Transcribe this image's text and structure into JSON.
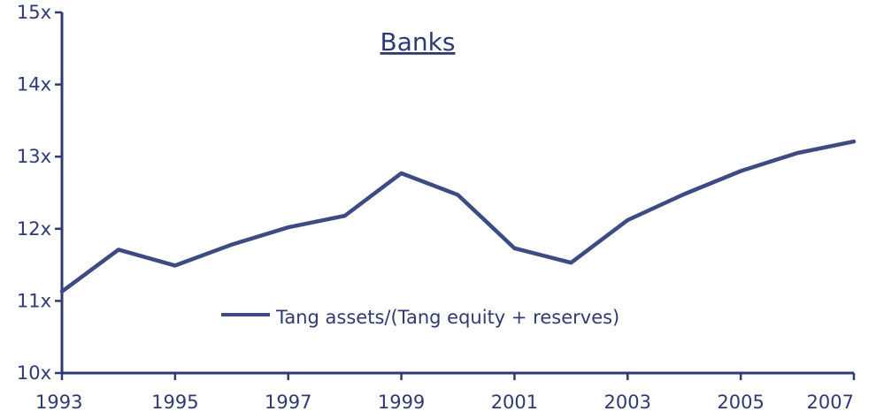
{
  "chart_data": {
    "type": "line",
    "title": "Banks",
    "xlabel": "",
    "ylabel": "",
    "x": [
      1993,
      1994,
      1995,
      1996,
      1997,
      1998,
      1999,
      2000,
      2001,
      2002,
      2003,
      2004,
      2005,
      2006,
      2007
    ],
    "x_tick_labels": [
      "1993",
      "1995",
      "1997",
      "1999",
      "2001",
      "2003",
      "2005",
      "2007"
    ],
    "x_ticks": [
      1993,
      1995,
      1997,
      1999,
      2001,
      2003,
      2005,
      2007
    ],
    "y_ticks": [
      10,
      11,
      12,
      13,
      14,
      15
    ],
    "y_tick_labels": [
      "10x",
      "11x",
      "12x",
      "13x",
      "14x",
      "15x"
    ],
    "xlim": [
      1993,
      2007
    ],
    "ylim": [
      10,
      15
    ],
    "grid": false,
    "legend_position": "bottom-center",
    "series": [
      {
        "name": "Tang assets/(Tang equity + reserves)",
        "values": [
          11.13,
          11.71,
          11.49,
          11.78,
          12.02,
          12.18,
          12.77,
          12.47,
          11.73,
          11.53,
          12.12,
          12.48,
          12.8,
          13.05,
          13.21
        ],
        "color": "#3d4a84"
      }
    ]
  }
}
